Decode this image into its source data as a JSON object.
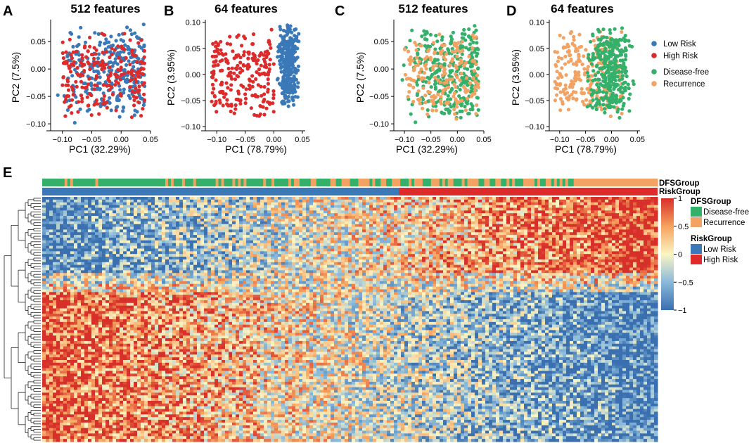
{
  "figure": {
    "colors": {
      "low_risk": "#3a78b8",
      "high_risk": "#dd2a2a",
      "disease_free": "#35b06a",
      "recurrence": "#f2a262"
    },
    "pca_legend": {
      "risk": [
        {
          "label": "Low Risk",
          "color": "#3a78b8"
        },
        {
          "label": "High Risk",
          "color": "#dd2a2a"
        }
      ],
      "dfs": [
        {
          "label": "Disease-free",
          "color": "#35b06a"
        },
        {
          "label": "Recurrence",
          "color": "#f2a262"
        }
      ]
    }
  },
  "chart_data": [
    {
      "panel": "A",
      "type": "scatter",
      "title": "512 features",
      "xlabel": "PC1 (32.29%)",
      "ylabel": "PC2 (7.5%)",
      "xlim": [
        -0.12,
        0.05
      ],
      "ylim": [
        -0.105,
        0.09
      ],
      "xticks": [
        -0.1,
        -0.05,
        0.0,
        0.05
      ],
      "xtick_labels": [
        "−0.10",
        "−0.05",
        "0.00",
        "0.05"
      ],
      "yticks": [
        -0.1,
        -0.05,
        0.0,
        0.05
      ],
      "ytick_labels": [
        "−0.10",
        "−0.05",
        "0.00",
        "0.05"
      ],
      "color_by": "risk",
      "series": [
        {
          "name": "Low Risk",
          "cloud": {
            "x": [
              -0.11,
              0.04
            ],
            "y": [
              -0.1,
              0.085
            ],
            "weight": "right",
            "n": 290
          }
        },
        {
          "name": "High Risk",
          "cloud": {
            "x": [
              -0.1,
              0.04
            ],
            "y": [
              -0.095,
              0.07
            ],
            "weight": "spread",
            "n": 220
          }
        }
      ]
    },
    {
      "panel": "B",
      "type": "scatter",
      "title": "64 features",
      "xlabel": "PC1 (78.79%)",
      "ylabel": "PC2 (3.95%)",
      "xlim": [
        -0.12,
        0.055
      ],
      "ylim": [
        -0.1,
        0.105
      ],
      "xticks": [
        -0.1,
        -0.05,
        0.0,
        0.05
      ],
      "xtick_labels": [
        "−0.10",
        "−0.05",
        "0.00",
        "0.05"
      ],
      "yticks": [
        -0.1,
        -0.05,
        0.0,
        0.05,
        0.1
      ],
      "ytick_labels": [
        "−0.10",
        "−0.05",
        "0.00",
        "0.05",
        "0.10"
      ],
      "color_by": "risk",
      "series": [
        {
          "name": "High Risk",
          "cloud": {
            "x": [
              -0.11,
              0.0
            ],
            "y": [
              -0.085,
              0.09
            ],
            "weight": "spread",
            "n": 230
          }
        },
        {
          "name": "Low Risk",
          "cloud": {
            "x": [
              0.005,
              0.045
            ],
            "y": [
              -0.07,
              0.1
            ],
            "weight": "dense",
            "n": 330
          }
        }
      ]
    },
    {
      "panel": "C",
      "type": "scatter",
      "title": "512 features",
      "xlabel": "PC1 (32.29%)",
      "ylabel": "PC2 (7.5%)",
      "xlim": [
        -0.12,
        0.05
      ],
      "ylim": [
        -0.105,
        0.09
      ],
      "xticks": [
        -0.1,
        -0.05,
        0.0,
        0.05
      ],
      "xtick_labels": [
        "−0.10",
        "−0.05",
        "0.00",
        "0.05"
      ],
      "yticks": [
        -0.1,
        -0.05,
        0.0,
        0.05
      ],
      "ytick_labels": [
        "−0.10",
        "−0.05",
        "0.00",
        "0.05"
      ],
      "color_by": "dfs",
      "series": [
        {
          "name": "Disease-free",
          "cloud": {
            "x": [
              -0.11,
              0.04
            ],
            "y": [
              -0.1,
              0.085
            ],
            "weight": "right",
            "n": 320
          }
        },
        {
          "name": "Recurrence",
          "cloud": {
            "x": [
              -0.1,
              0.04
            ],
            "y": [
              -0.095,
              0.08
            ],
            "weight": "spread",
            "n": 190
          }
        }
      ]
    },
    {
      "panel": "D",
      "type": "scatter",
      "title": "64 features",
      "xlabel": "PC1 (78.79%)",
      "ylabel": "PC2 (3.95%)",
      "xlim": [
        -0.12,
        0.055
      ],
      "ylim": [
        -0.1,
        0.105
      ],
      "xticks": [
        -0.1,
        -0.05,
        0.0,
        0.05
      ],
      "xtick_labels": [
        "−0.10",
        "−0.05",
        "0.00",
        "0.05"
      ],
      "yticks": [
        -0.1,
        -0.05,
        0.0,
        0.05,
        0.1
      ],
      "ytick_labels": [
        "−0.10",
        "−0.05",
        "0.00",
        "0.05",
        "0.10"
      ],
      "color_by": "dfs",
      "series": [
        {
          "name": "Recurrence",
          "cloud": {
            "x": [
              -0.11,
              0.02
            ],
            "y": [
              -0.085,
              0.1
            ],
            "weight": "spread",
            "n": 230
          }
        },
        {
          "name": "Disease-free",
          "cloud": {
            "x": [
              -0.05,
              0.045
            ],
            "y": [
              -0.09,
              0.1
            ],
            "weight": "dense",
            "n": 330
          }
        }
      ]
    },
    {
      "panel": "E",
      "type": "heatmap",
      "n_columns": 560,
      "n_rows": 90,
      "row_split_fraction": 0.36,
      "annotations": {
        "DFSGroup": {
          "title": "DFSGroup",
          "levels": [
            "Disease-free",
            "Recurrence"
          ],
          "recurrence_fraction_start": 0.12,
          "recurrence_fraction_end": 0.85,
          "solid_recurrence_from": 0.88
        },
        "RiskGroup": {
          "title": "RiskGroup",
          "levels": [
            "Low Risk",
            "High Risk"
          ],
          "split_fraction": 0.58
        }
      },
      "colorbar": {
        "range": [
          -1,
          1
        ],
        "ticks": [
          1,
          0.5,
          0,
          -0.5,
          -1
        ],
        "tick_labels": [
          "1",
          "0.5",
          "0",
          "−0.5",
          "−1"
        ],
        "colors": [
          "#3a6fb0",
          "#8ab9d9",
          "#fbf5c3",
          "#f6a25e",
          "#d7302a"
        ]
      },
      "legend": {
        "annotation_names": [
          "DFSGroup",
          "RiskGroup"
        ],
        "dfs_title": "DFSGroup",
        "dfs_items": [
          {
            "label": "Disease-free",
            "color": "#35b06a"
          },
          {
            "label": "Recurrence",
            "color": "#f2a262"
          }
        ],
        "risk_title": "RiskGroup",
        "risk_items": [
          {
            "label": "Low Risk",
            "color": "#3a78b8"
          },
          {
            "label": "High Risk",
            "color": "#dd2a2a"
          }
        ]
      }
    }
  ]
}
